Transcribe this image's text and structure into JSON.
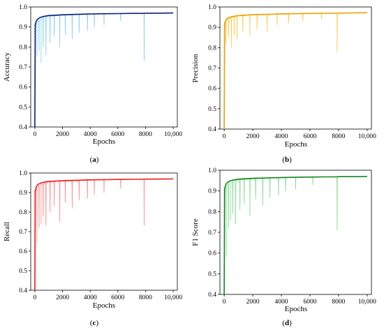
{
  "chart_data": [
    {
      "type": "line",
      "panel_label": "a",
      "xlabel": "Epochs",
      "ylabel": "Accuracy",
      "xlim": [
        -300,
        10300
      ],
      "ylim": [
        0.4,
        1.0
      ],
      "xticks": [
        0,
        2000,
        4000,
        6000,
        8000,
        10000
      ],
      "xtick_labels": [
        "0",
        "2000",
        "4000",
        "6000",
        "8000",
        "10,000"
      ],
      "yticks": [
        0.4,
        0.5,
        0.6,
        0.7,
        0.8,
        0.9,
        1.0
      ],
      "ytick_labels": [
        "0.4",
        "0.5",
        "0.6",
        "0.7",
        "0.8",
        "0.9",
        "1.0"
      ],
      "series": [
        {
          "role": "raw",
          "color": "#87ceeb",
          "x": [
            0,
            30,
            80,
            150,
            250,
            400,
            600,
            800,
            1000,
            1500,
            2000,
            3000,
            4000,
            5000,
            6000,
            7000,
            7900,
            8000,
            9000,
            10000
          ],
          "y": [
            0.4,
            0.88,
            0.91,
            0.92,
            0.93,
            0.94,
            0.945,
            0.95,
            0.952,
            0.956,
            0.958,
            0.961,
            0.963,
            0.965,
            0.966,
            0.967,
            0.968,
            0.968,
            0.969,
            0.97
          ],
          "dips": [
            [
              150,
              0.75
            ],
            [
              300,
              0.78
            ],
            [
              450,
              0.72
            ],
            [
              600,
              0.8
            ],
            [
              800,
              0.76
            ],
            [
              1100,
              0.82
            ],
            [
              1400,
              0.85
            ],
            [
              1800,
              0.8
            ],
            [
              2200,
              0.86
            ],
            [
              2700,
              0.84
            ],
            [
              3200,
              0.87
            ],
            [
              3800,
              0.88
            ],
            [
              4300,
              0.9
            ],
            [
              5000,
              0.91
            ],
            [
              6200,
              0.93
            ],
            [
              7900,
              0.73
            ]
          ]
        },
        {
          "role": "smoothed",
          "color": "#0a1f7a",
          "x": [
            0,
            30,
            80,
            150,
            250,
            400,
            600,
            800,
            1000,
            1500,
            2000,
            3000,
            4000,
            5000,
            6000,
            7000,
            7900,
            8000,
            9000,
            10000
          ],
          "y": [
            0.4,
            0.91,
            0.925,
            0.935,
            0.942,
            0.948,
            0.952,
            0.955,
            0.957,
            0.959,
            0.961,
            0.963,
            0.965,
            0.966,
            0.967,
            0.968,
            0.968,
            0.969,
            0.969,
            0.97
          ]
        }
      ]
    },
    {
      "type": "line",
      "panel_label": "b",
      "xlabel": "Epochs",
      "ylabel": "Precision",
      "xlim": [
        -300,
        10300
      ],
      "ylim": [
        0.4,
        1.0
      ],
      "xticks": [
        0,
        2000,
        4000,
        6000,
        8000,
        10000
      ],
      "xtick_labels": [
        "0",
        "2000",
        "4000",
        "6000",
        "8000",
        "10,000"
      ],
      "yticks": [
        0.4,
        0.5,
        0.6,
        0.7,
        0.8,
        0.9,
        1.0
      ],
      "ytick_labels": [
        "0.4",
        "0.5",
        "0.6",
        "0.7",
        "0.8",
        "0.9",
        "1.0"
      ],
      "series": [
        {
          "role": "raw",
          "color": "#ffc94d",
          "x": [
            0,
            30,
            80,
            150,
            250,
            400,
            600,
            800,
            1000,
            1500,
            2000,
            3000,
            4000,
            5000,
            6000,
            7000,
            7900,
            8000,
            9000,
            10000
          ],
          "y": [
            0.4,
            0.9,
            0.92,
            0.93,
            0.94,
            0.945,
            0.95,
            0.952,
            0.955,
            0.958,
            0.96,
            0.962,
            0.964,
            0.966,
            0.967,
            0.968,
            0.968,
            0.969,
            0.97,
            0.972
          ],
          "dips": [
            [
              120,
              0.82
            ],
            [
              300,
              0.85
            ],
            [
              500,
              0.8
            ],
            [
              700,
              0.86
            ],
            [
              900,
              0.84
            ],
            [
              1300,
              0.88
            ],
            [
              1800,
              0.86
            ],
            [
              2300,
              0.89
            ],
            [
              3000,
              0.88
            ],
            [
              3700,
              0.91
            ],
            [
              4500,
              0.92
            ],
            [
              5500,
              0.93
            ],
            [
              6800,
              0.94
            ],
            [
              7900,
              0.78
            ]
          ]
        },
        {
          "role": "smoothed",
          "color": "#f0a000",
          "x": [
            0,
            30,
            80,
            150,
            250,
            400,
            600,
            800,
            1000,
            1500,
            2000,
            3000,
            4000,
            5000,
            6000,
            7000,
            7900,
            8000,
            9000,
            10000
          ],
          "y": [
            0.4,
            0.92,
            0.93,
            0.94,
            0.946,
            0.95,
            0.953,
            0.956,
            0.958,
            0.96,
            0.962,
            0.964,
            0.966,
            0.967,
            0.968,
            0.969,
            0.969,
            0.97,
            0.971,
            0.972
          ]
        }
      ]
    },
    {
      "type": "line",
      "panel_label": "c",
      "xlabel": "Epochs",
      "ylabel": "Recall",
      "xlim": [
        -300,
        10300
      ],
      "ylim": [
        0.4,
        1.0
      ],
      "xticks": [
        0,
        2000,
        4000,
        6000,
        8000,
        10000
      ],
      "xtick_labels": [
        "0",
        "2000",
        "4000",
        "6000",
        "8000",
        "10,000"
      ],
      "yticks": [
        0.4,
        0.5,
        0.6,
        0.7,
        0.8,
        0.9,
        1.0
      ],
      "ytick_labels": [
        "0.4",
        "0.5",
        "0.6",
        "0.7",
        "0.8",
        "0.9",
        "1.0"
      ],
      "series": [
        {
          "role": "raw",
          "color": "#ff8a8a",
          "x": [
            0,
            30,
            80,
            150,
            250,
            400,
            600,
            800,
            1000,
            1500,
            2000,
            3000,
            4000,
            5000,
            6000,
            7000,
            7900,
            8000,
            9000,
            10000
          ],
          "y": [
            0.4,
            0.88,
            0.91,
            0.92,
            0.93,
            0.94,
            0.945,
            0.95,
            0.952,
            0.956,
            0.958,
            0.961,
            0.963,
            0.965,
            0.966,
            0.967,
            0.968,
            0.968,
            0.969,
            0.97
          ],
          "dips": [
            [
              150,
              0.64
            ],
            [
              300,
              0.72
            ],
            [
              450,
              0.74
            ],
            [
              600,
              0.78
            ],
            [
              800,
              0.73
            ],
            [
              1100,
              0.8
            ],
            [
              1400,
              0.83
            ],
            [
              1800,
              0.75
            ],
            [
              2200,
              0.85
            ],
            [
              2700,
              0.82
            ],
            [
              3200,
              0.86
            ],
            [
              3800,
              0.87
            ],
            [
              4300,
              0.89
            ],
            [
              5000,
              0.9
            ],
            [
              6200,
              0.92
            ],
            [
              7900,
              0.73
            ]
          ]
        },
        {
          "role": "smoothed",
          "color": "#ee1c1c",
          "x": [
            0,
            30,
            80,
            150,
            250,
            400,
            600,
            800,
            1000,
            1500,
            2000,
            3000,
            4000,
            5000,
            6000,
            7000,
            7900,
            8000,
            9000,
            10000
          ],
          "y": [
            0.4,
            0.91,
            0.925,
            0.935,
            0.942,
            0.948,
            0.952,
            0.955,
            0.957,
            0.959,
            0.961,
            0.963,
            0.965,
            0.966,
            0.967,
            0.968,
            0.968,
            0.969,
            0.969,
            0.97
          ]
        }
      ]
    },
    {
      "type": "line",
      "panel_label": "d",
      "xlabel": "Epochs",
      "ylabel": "F1 Score",
      "xlim": [
        -300,
        10300
      ],
      "ylim": [
        0.4,
        1.0
      ],
      "xticks": [
        0,
        2000,
        4000,
        6000,
        8000,
        10000
      ],
      "xtick_labels": [
        "0",
        "2000",
        "4000",
        "6000",
        "8000",
        "10,000"
      ],
      "yticks": [
        0.4,
        0.5,
        0.6,
        0.7,
        0.8,
        0.9,
        1.0
      ],
      "ytick_labels": [
        "0.4",
        "0.5",
        "0.6",
        "0.7",
        "0.8",
        "0.9",
        "1.0"
      ],
      "series": [
        {
          "role": "raw",
          "color": "#7fdc8c",
          "x": [
            0,
            30,
            80,
            150,
            250,
            400,
            600,
            800,
            1000,
            1500,
            2000,
            3000,
            4000,
            5000,
            6000,
            7000,
            7900,
            8000,
            9000,
            10000
          ],
          "y": [
            0.4,
            0.88,
            0.91,
            0.92,
            0.93,
            0.94,
            0.945,
            0.95,
            0.952,
            0.956,
            0.958,
            0.961,
            0.963,
            0.965,
            0.966,
            0.967,
            0.968,
            0.968,
            0.969,
            0.97
          ],
          "dips": [
            [
              150,
              0.58
            ],
            [
              300,
              0.72
            ],
            [
              450,
              0.76
            ],
            [
              600,
              0.79
            ],
            [
              800,
              0.74
            ],
            [
              1100,
              0.81
            ],
            [
              1400,
              0.84
            ],
            [
              1800,
              0.78
            ],
            [
              2200,
              0.86
            ],
            [
              2700,
              0.83
            ],
            [
              3200,
              0.87
            ],
            [
              3800,
              0.88
            ],
            [
              4300,
              0.9
            ],
            [
              5000,
              0.91
            ],
            [
              6200,
              0.93
            ],
            [
              7900,
              0.71
            ]
          ]
        },
        {
          "role": "smoothed",
          "color": "#0c8a1c",
          "x": [
            0,
            30,
            80,
            150,
            250,
            400,
            600,
            800,
            1000,
            1500,
            2000,
            3000,
            4000,
            5000,
            6000,
            7000,
            7900,
            8000,
            9000,
            10000
          ],
          "y": [
            0.4,
            0.91,
            0.925,
            0.935,
            0.942,
            0.948,
            0.952,
            0.955,
            0.957,
            0.959,
            0.961,
            0.963,
            0.965,
            0.966,
            0.967,
            0.968,
            0.968,
            0.969,
            0.969,
            0.97
          ]
        }
      ]
    }
  ]
}
